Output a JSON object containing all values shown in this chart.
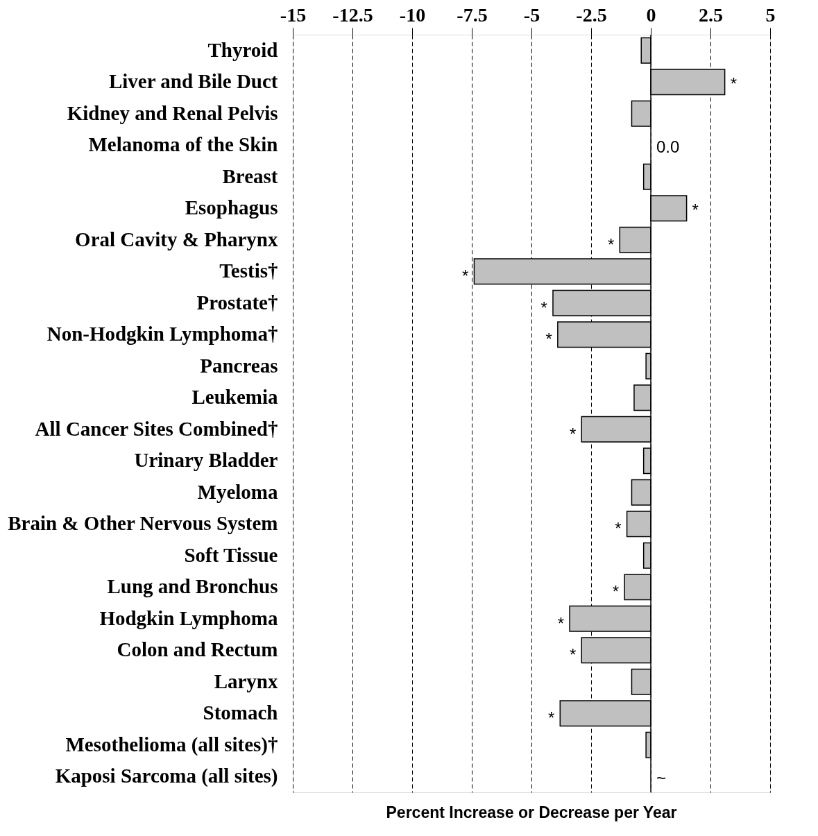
{
  "chart_data": {
    "type": "bar",
    "orientation": "horizontal",
    "xlabel": "Percent Increase or Decrease per Year",
    "categories": [
      "Thyroid",
      "Liver and Bile Duct",
      "Kidney and Renal Pelvis",
      "Melanoma of the Skin",
      "Breast",
      "Esophagus",
      "Oral Cavity & Pharynx",
      "Testis†",
      "Prostate†",
      "Non-Hodgkin Lymphoma†",
      "Pancreas",
      "Leukemia",
      "All Cancer Sites Combined†",
      "Urinary Bladder",
      "Myeloma",
      "Brain & Other Nervous System",
      "Soft Tissue",
      "Lung and Bronchus",
      "Hodgkin Lymphoma",
      "Colon and Rectum",
      "Larynx",
      "Stomach",
      "Mesothelioma (all sites)†",
      "Kaposi Sarcoma (all sites)"
    ],
    "values": [
      -0.4,
      3.1,
      -0.8,
      0.0,
      -0.3,
      1.5,
      -1.3,
      -7.4,
      -4.1,
      -3.9,
      -0.2,
      -0.7,
      -2.9,
      -0.3,
      -0.8,
      -1.0,
      -0.3,
      -1.1,
      -3.4,
      -2.9,
      -0.8,
      -3.8,
      -0.2,
      null
    ],
    "value_labels": [
      null,
      "*",
      null,
      "0.0",
      null,
      "*",
      "*",
      "*",
      "*",
      "*",
      null,
      null,
      "*",
      null,
      null,
      "*",
      null,
      "*",
      "*",
      "*",
      null,
      "*",
      null,
      "~"
    ],
    "color": "#c0c0c0",
    "xlim": [
      -15,
      5
    ],
    "xticks": [
      {
        "value": -15,
        "label": "-15"
      },
      {
        "value": -12.5,
        "label": "-12.5"
      },
      {
        "value": -10,
        "label": "-10"
      },
      {
        "value": -7.5,
        "label": "-7.5"
      },
      {
        "value": -5,
        "label": "-5"
      },
      {
        "value": -2.5,
        "label": "-2.5"
      },
      0,
      2.5,
      5
    ],
    "grid": "x",
    "ref_lines": [
      {
        "axis": "x",
        "value": 0,
        "color": "#000000",
        "line_style": "solid"
      }
    ]
  }
}
